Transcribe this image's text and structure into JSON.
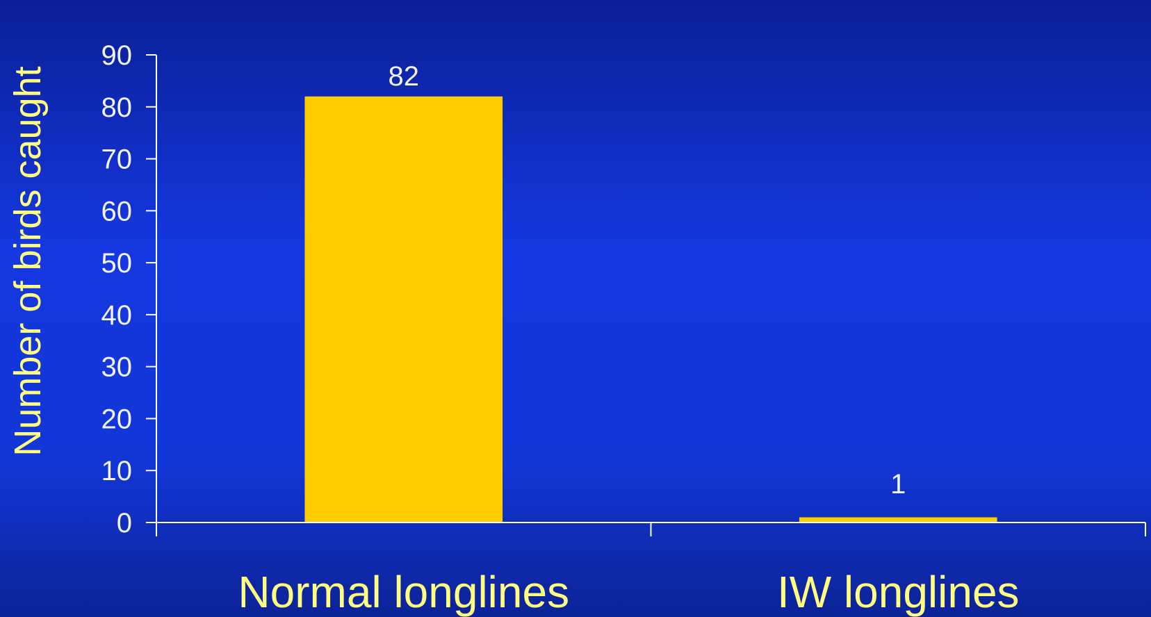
{
  "colors": {
    "background": "#1236d6",
    "bar": "#ffcc00",
    "axis": "#ffffff",
    "label_text": "#ffff80",
    "tick_text": "#f2f2f2"
  },
  "chart_data": {
    "type": "bar",
    "title": "",
    "xlabel": "",
    "ylabel": "Number of birds caught",
    "categories": [
      "Normal longlines",
      "IW longlines"
    ],
    "values": [
      82,
      1
    ],
    "data_labels": [
      "82",
      "1"
    ],
    "ylim": [
      0,
      90
    ],
    "yticks": [
      0,
      10,
      20,
      30,
      40,
      50,
      60,
      70,
      80,
      90
    ],
    "grid": false,
    "legend": "none"
  }
}
